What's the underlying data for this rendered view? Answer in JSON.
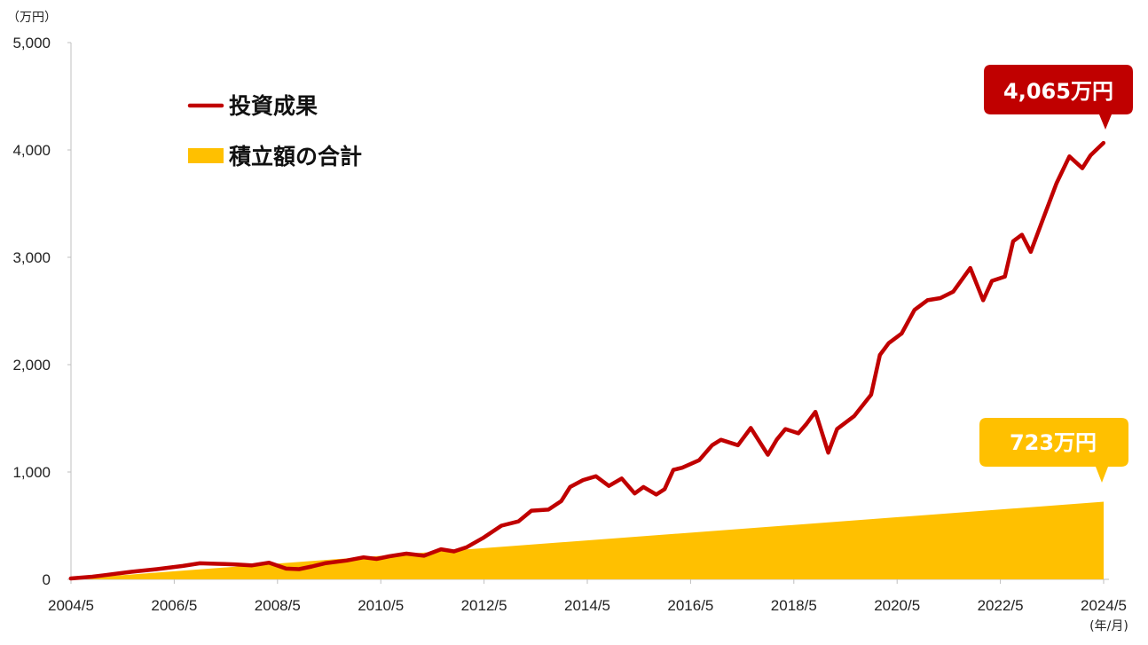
{
  "chart_data": {
    "type": "line+area",
    "y_unit": "（万円）",
    "x_unit": "(年/月)",
    "ylim": [
      0,
      5000
    ],
    "y_ticks": [
      0,
      1000,
      2000,
      3000,
      4000,
      5000
    ],
    "y_tick_labels": [
      "0",
      "1,000",
      "2,000",
      "3,000",
      "4,000",
      "5,000"
    ],
    "x_tick_labels": [
      "2004/5",
      "2006/5",
      "2008/5",
      "2010/5",
      "2012/5",
      "2014/5",
      "2016/5",
      "2018/5",
      "2020/5",
      "2022/5",
      "2024/5"
    ],
    "x_range": [
      2004.333,
      2024.333
    ],
    "legend": {
      "line_label": "投資成果",
      "area_label": "積立額の合計"
    },
    "colors": {
      "line": "#c00000",
      "area": "#ffc000",
      "axis": "#bfbfbf"
    },
    "series": [
      {
        "name": "投資成果",
        "kind": "line",
        "x": [
          2004.33,
          2004.75,
          2005.0,
          2005.5,
          2006.0,
          2006.5,
          2006.83,
          2007.17,
          2007.5,
          2007.83,
          2008.17,
          2008.5,
          2008.75,
          2009.0,
          2009.25,
          2009.67,
          2010.0,
          2010.25,
          2010.5,
          2010.83,
          2011.17,
          2011.5,
          2011.75,
          2012.0,
          2012.33,
          2012.67,
          2013.0,
          2013.25,
          2013.58,
          2013.83,
          2014.0,
          2014.25,
          2014.5,
          2014.75,
          2015.0,
          2015.25,
          2015.42,
          2015.67,
          2015.83,
          2016.0,
          2016.17,
          2016.5,
          2016.75,
          2016.92,
          2017.25,
          2017.5,
          2017.83,
          2018.0,
          2018.17,
          2018.42,
          2018.58,
          2018.75,
          2019.0,
          2019.17,
          2019.5,
          2019.83,
          2020.0,
          2020.17,
          2020.42,
          2020.67,
          2020.92,
          2021.17,
          2021.42,
          2021.75,
          2022.0,
          2022.17,
          2022.42,
          2022.58,
          2022.75,
          2022.92,
          2023.17,
          2023.42,
          2023.67,
          2023.92,
          2024.08,
          2024.33
        ],
        "values": [
          8,
          25,
          40,
          70,
          95,
          125,
          150,
          145,
          140,
          130,
          155,
          100,
          95,
          120,
          150,
          175,
          205,
          190,
          215,
          240,
          220,
          280,
          260,
          300,
          390,
          500,
          540,
          640,
          650,
          730,
          860,
          925,
          960,
          870,
          940,
          800,
          860,
          790,
          840,
          1020,
          1040,
          1110,
          1250,
          1300,
          1250,
          1410,
          1160,
          1300,
          1400,
          1360,
          1450,
          1560,
          1180,
          1400,
          1520,
          1720,
          2090,
          2200,
          2290,
          2510,
          2600,
          2620,
          2680,
          2900,
          2600,
          2780,
          2820,
          3150,
          3210,
          3050,
          3370,
          3690,
          3940,
          3830,
          3950,
          4065
        ]
      },
      {
        "name": "積立額の合計",
        "kind": "area",
        "x": [
          2004.333,
          2024.333
        ],
        "values": [
          3,
          723
        ]
      }
    ],
    "annotations": [
      {
        "target": "投資成果",
        "text": "4,065万円",
        "value": 4065
      },
      {
        "target": "積立額の合計",
        "text": "723万円",
        "value": 723
      }
    ]
  }
}
